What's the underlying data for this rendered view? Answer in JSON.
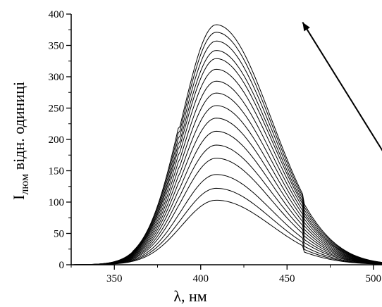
{
  "chart_data": {
    "type": "line",
    "xlabel": "λ, нм",
    "ylabel_main": "I",
    "ylabel_sub": "люм",
    "ylabel_rest": " відн. одиниці",
    "xlim": [
      325,
      505
    ],
    "ylim": [
      0,
      400
    ],
    "xticks": [
      350,
      400,
      450,
      500
    ],
    "xtick_labels": [
      "350",
      "400",
      "450",
      "500"
    ],
    "yticks": [
      0,
      50,
      100,
      150,
      200,
      250,
      300,
      350,
      400
    ],
    "ytick_labels": [
      "0",
      "50",
      "100",
      "150",
      "200",
      "250",
      "300",
      "350",
      "400"
    ],
    "peak_wavelength": 409,
    "peak_intensities": [
      103,
      122,
      144,
      170,
      191,
      213,
      234,
      254,
      274,
      293,
      312,
      329,
      342,
      357,
      371,
      383
    ],
    "arrow": {
      "from": [
        508,
        170
      ],
      "to": [
        459,
        387
      ],
      "meaning": "increasing intensity"
    },
    "legend": "none",
    "grid": false
  }
}
